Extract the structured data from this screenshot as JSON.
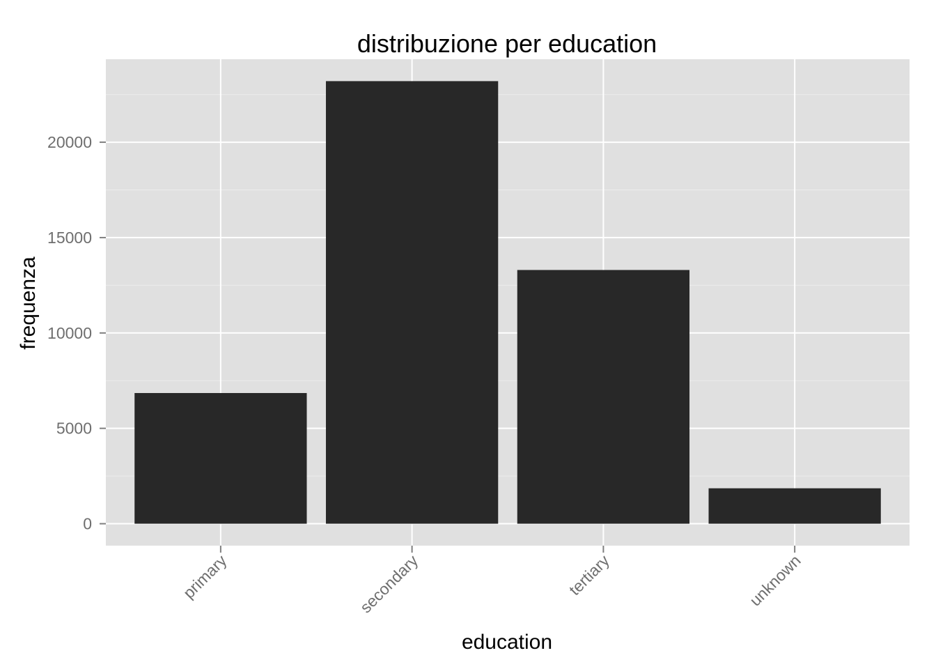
{
  "chart_data": {
    "type": "bar",
    "title": "distribuzione per education",
    "xlabel": "education",
    "ylabel": "frequenza",
    "categories": [
      "primary",
      "secondary",
      "tertiary",
      "unknown"
    ],
    "values": [
      6851,
      23202,
      13301,
      1857
    ],
    "ylim": [
      -1150,
      24350
    ],
    "yticks": [
      0,
      5000,
      10000,
      15000,
      20000
    ],
    "ytick_labels": [
      "0",
      "5000",
      "10000",
      "15000",
      "20000"
    ],
    "grid": true,
    "legend": "none",
    "colors": {
      "panel": "#e0e0e0",
      "grid_major": "#ffffff",
      "grid_minor": "#ececec",
      "bar": "#282828",
      "tick": "#7f7f7f"
    }
  }
}
